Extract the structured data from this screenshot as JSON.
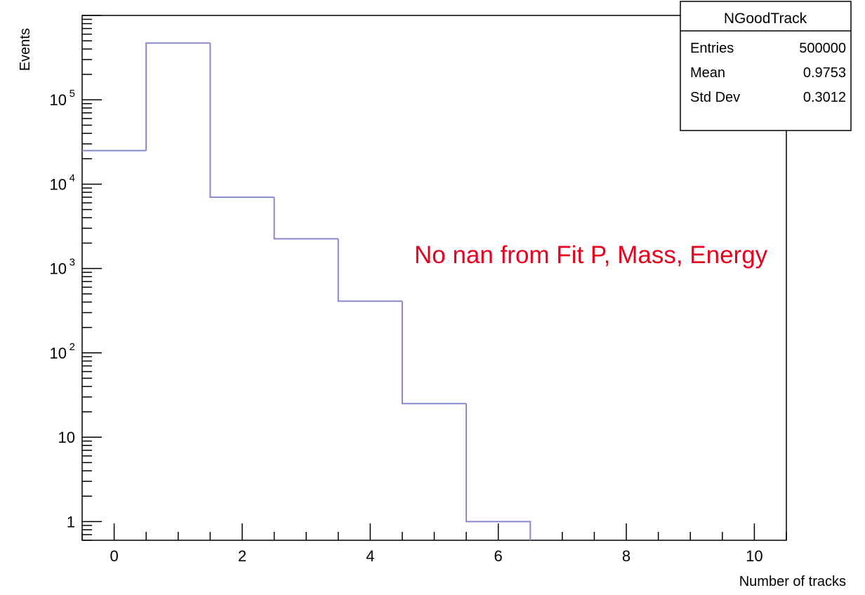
{
  "chart_data": {
    "type": "bar",
    "histogram": true,
    "xlabel": "Number of tracks",
    "ylabel": "Events",
    "xlim": [
      -0.5,
      10.5
    ],
    "ylim": [
      0.6,
      1000000
    ],
    "yscale": "log",
    "x_ticks": [
      0,
      2,
      4,
      6,
      8,
      10
    ],
    "y_ticks": [
      {
        "value": 1,
        "label": "1"
      },
      {
        "value": 10,
        "label": "10"
      },
      {
        "value": 100,
        "label": "10",
        "exp": "2"
      },
      {
        "value": 1000,
        "label": "10",
        "exp": "3"
      },
      {
        "value": 10000,
        "label": "10",
        "exp": "4"
      },
      {
        "value": 100000,
        "label": "10",
        "exp": "5"
      }
    ],
    "bins": [
      {
        "low": -0.5,
        "high": 0.5,
        "value": 25000
      },
      {
        "low": 0.5,
        "high": 1.5,
        "value": 470000
      },
      {
        "low": 1.5,
        "high": 2.5,
        "value": 7000
      },
      {
        "low": 2.5,
        "high": 3.5,
        "value": 2250
      },
      {
        "low": 3.5,
        "high": 4.5,
        "value": 410
      },
      {
        "low": 4.5,
        "high": 5.5,
        "value": 25
      },
      {
        "low": 5.5,
        "high": 6.5,
        "value": 1
      }
    ],
    "line_color": "#8888cc",
    "stats_box": {
      "title": "NGoodTrack",
      "rows": [
        {
          "label": "Entries",
          "value": "500000"
        },
        {
          "label": "Mean",
          "value": "0.9753"
        },
        {
          "label": "Std Dev",
          "value": "0.3012"
        }
      ]
    },
    "annotation": {
      "text": "No nan from Fit P, Mass, Energy",
      "color": "#e8001c"
    }
  }
}
